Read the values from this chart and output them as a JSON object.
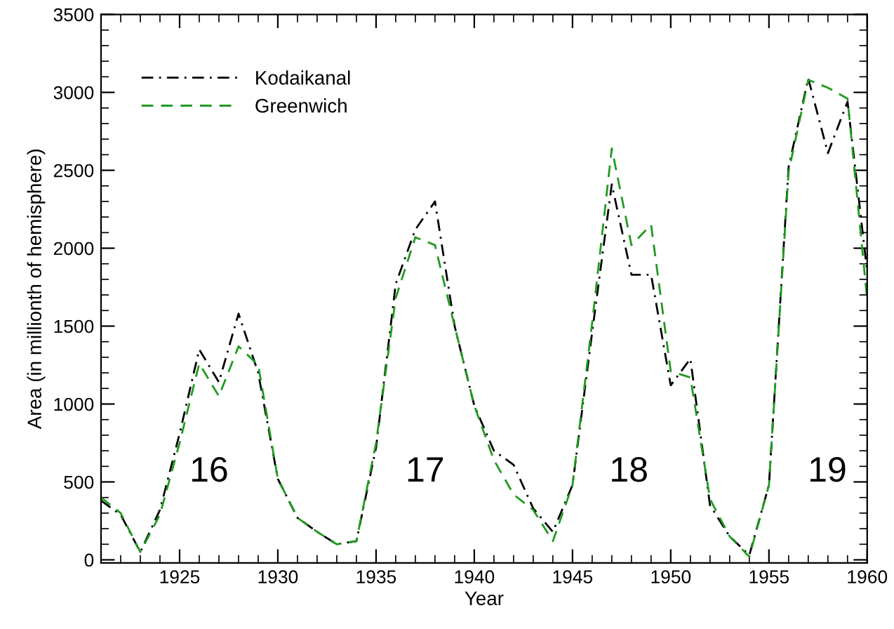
{
  "chart_data": {
    "type": "line",
    "xlabel": "Year",
    "ylabel": "Area (in millionth of hemisphere)",
    "x": [
      1921,
      1922,
      1923,
      1924,
      1925,
      1926,
      1927,
      1928,
      1929,
      1930,
      1931,
      1932,
      1933,
      1934,
      1935,
      1936,
      1937,
      1938,
      1939,
      1940,
      1941,
      1942,
      1943,
      1944,
      1945,
      1946,
      1947,
      1948,
      1949,
      1950,
      1951,
      1952,
      1953,
      1954,
      1955,
      1956,
      1957,
      1958,
      1959,
      1960
    ],
    "series": [
      {
        "name": "Kodaikanal",
        "color": "#000000",
        "line_style": "dashdot",
        "values": [
          380,
          290,
          50,
          320,
          810,
          1350,
          1140,
          1580,
          1200,
          520,
          270,
          180,
          100,
          120,
          720,
          1770,
          2120,
          2300,
          1500,
          990,
          700,
          610,
          330,
          180,
          480,
          1460,
          2410,
          1830,
          1830,
          1120,
          1290,
          350,
          150,
          30,
          480,
          2520,
          3090,
          2610,
          2940,
          1850
        ]
      },
      {
        "name": "Greenwich",
        "color": "#1f9a1f",
        "line_style": "dashed",
        "values": [
          400,
          300,
          50,
          290,
          750,
          1260,
          1050,
          1370,
          1250,
          520,
          270,
          180,
          100,
          120,
          750,
          1680,
          2070,
          2020,
          1500,
          990,
          640,
          420,
          320,
          120,
          480,
          1520,
          2640,
          2020,
          2150,
          1210,
          1170,
          390,
          150,
          20,
          480,
          2490,
          3080,
          3030,
          2960,
          1670
        ]
      }
    ],
    "xlim": [
      1921,
      1960
    ],
    "ylim": [
      -20,
      3500
    ],
    "xticks": [
      1925,
      1930,
      1935,
      1940,
      1945,
      1950,
      1955,
      1960
    ],
    "yticks": [
      0,
      500,
      1000,
      1500,
      2000,
      2500,
      3000,
      3500
    ],
    "legend": "top left",
    "grid": false,
    "marker": "none",
    "annotations": [
      "16",
      "17",
      "18",
      "19"
    ]
  }
}
